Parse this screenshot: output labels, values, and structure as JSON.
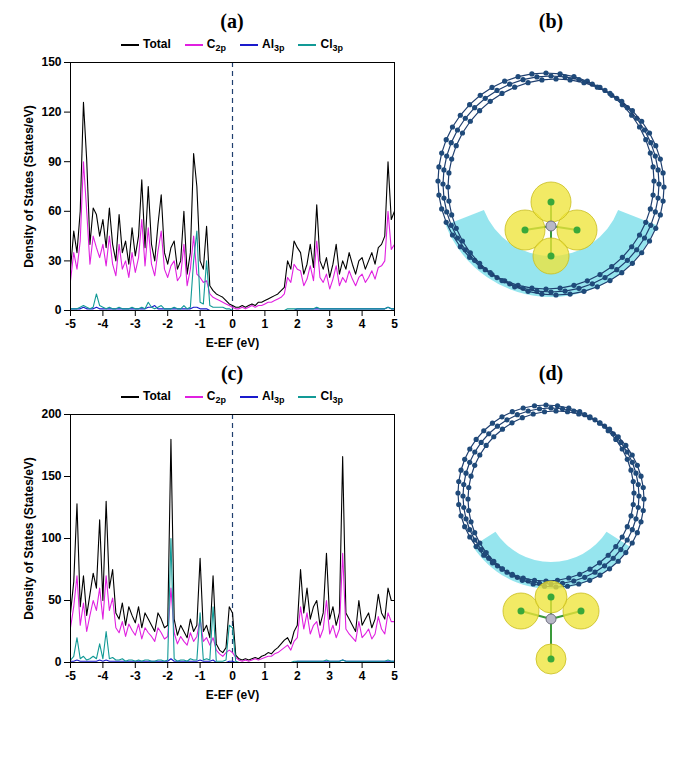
{
  "chart_data": [
    {
      "type": "line",
      "title": "(a)",
      "x_label": "E-EF (eV)",
      "y_label": "Density of States (States/eV)",
      "x": [
        -5,
        -4.9,
        -4.8,
        -4.7,
        -4.6,
        -4.5,
        -4.4,
        -4.3,
        -4.2,
        -4.1,
        -4,
        -3.9,
        -3.8,
        -3.7,
        -3.6,
        -3.5,
        -3.4,
        -3.3,
        -3.2,
        -3.1,
        -3,
        -2.9,
        -2.8,
        -2.7,
        -2.6,
        -2.5,
        -2.4,
        -2.3,
        -2.2,
        -2.1,
        -2,
        -1.9,
        -1.8,
        -1.7,
        -1.6,
        -1.5,
        -1.4,
        -1.3,
        -1.2,
        -1.1,
        -1,
        -0.9,
        -0.8,
        -0.7,
        -0.6,
        -0.5,
        -0.4,
        -0.3,
        -0.2,
        -0.1,
        0,
        0.1,
        0.2,
        0.3,
        0.4,
        0.5,
        0.6,
        0.7,
        0.8,
        0.9,
        1,
        1.1,
        1.2,
        1.3,
        1.4,
        1.5,
        1.6,
        1.7,
        1.8,
        1.9,
        2,
        2.1,
        2.2,
        2.3,
        2.4,
        2.5,
        2.6,
        2.7,
        2.8,
        2.9,
        3,
        3.1,
        3.2,
        3.3,
        3.4,
        3.5,
        3.6,
        3.7,
        3.8,
        3.9,
        4,
        4.1,
        4.2,
        4.3,
        4.4,
        4.5,
        4.6,
        4.7,
        4.8,
        4.9,
        5
      ],
      "series": [
        {
          "name": "Total",
          "color": "#000000",
          "values": [
            25,
            48,
            35,
            60,
            126,
            91,
            40,
            62,
            58,
            45,
            55,
            38,
            62,
            40,
            30,
            58,
            35,
            42,
            28,
            50,
            33,
            45,
            79,
            38,
            75,
            40,
            30,
            52,
            70,
            35,
            28,
            38,
            42,
            25,
            30,
            60,
            22,
            35,
            95,
            75,
            30,
            25,
            51,
            15,
            12,
            10,
            9,
            8,
            6,
            4,
            3,
            2,
            2,
            3,
            2,
            3,
            4,
            3,
            5,
            5,
            6,
            7,
            8,
            9,
            10,
            12,
            14,
            30,
            25,
            42,
            38,
            35,
            22,
            28,
            40,
            26,
            64,
            30,
            25,
            32,
            20,
            28,
            40,
            22,
            30,
            25,
            35,
            28,
            22,
            30,
            32,
            25,
            30,
            35,
            28,
            38,
            40,
            45,
            90,
            55,
            60
          ]
        },
        {
          "name": "C2p",
          "color": "#e020e0",
          "values": [
            18,
            35,
            25,
            42,
            90,
            60,
            28,
            45,
            38,
            32,
            40,
            27,
            45,
            28,
            21,
            40,
            25,
            30,
            20,
            35,
            23,
            32,
            55,
            27,
            50,
            28,
            21,
            36,
            48,
            25,
            20,
            27,
            30,
            18,
            21,
            40,
            15,
            25,
            45,
            22,
            20,
            17,
            18,
            10,
            8,
            7,
            6,
            5,
            4,
            3,
            2,
            1,
            1,
            2,
            1,
            2,
            3,
            2,
            3,
            3,
            4,
            5,
            5,
            6,
            7,
            8,
            10,
            20,
            17,
            28,
            25,
            24,
            15,
            19,
            27,
            18,
            42,
            20,
            17,
            22,
            13,
            19,
            27,
            15,
            20,
            17,
            24,
            19,
            15,
            20,
            22,
            17,
            20,
            24,
            19,
            26,
            27,
            30,
            60,
            37,
            40
          ]
        },
        {
          "name": "Al3p",
          "color": "#1a1acc",
          "values": [
            1,
            1,
            1,
            1,
            2,
            1,
            1,
            1,
            2,
            1,
            1,
            1,
            1,
            1,
            1,
            1,
            1,
            1,
            1,
            1,
            1,
            1,
            1,
            1,
            2,
            2,
            3,
            1,
            1,
            1,
            1,
            1,
            1,
            1,
            1,
            1,
            1,
            1,
            2,
            2,
            1,
            1,
            1,
            0,
            0,
            0,
            0,
            0,
            0,
            0,
            0,
            0,
            0,
            0,
            0,
            0,
            0,
            0,
            0,
            0,
            0,
            0,
            0,
            0,
            0,
            0,
            0,
            0,
            0,
            0,
            1,
            1,
            1,
            1,
            1,
            1,
            1,
            1,
            1,
            1,
            1,
            1,
            1,
            1,
            1,
            1,
            1,
            1,
            1,
            1,
            1,
            1,
            1,
            1,
            1,
            1,
            1,
            1,
            2,
            1,
            1
          ]
        },
        {
          "name": "Cl3p",
          "color": "#129a96",
          "values": [
            1,
            1,
            1,
            2,
            3,
            2,
            1,
            2,
            10,
            3,
            2,
            1,
            2,
            1,
            1,
            2,
            1,
            1,
            1,
            2,
            1,
            1,
            2,
            1,
            5,
            2,
            1,
            2,
            3,
            1,
            1,
            1,
            2,
            1,
            1,
            3,
            1,
            2,
            30,
            48,
            5,
            4,
            30,
            3,
            2,
            2,
            2,
            2,
            1,
            1,
            0,
            0,
            0,
            0,
            0,
            0,
            0,
            0,
            0,
            0,
            0,
            0,
            0,
            0,
            0,
            0,
            0,
            1,
            1,
            1,
            1,
            1,
            1,
            1,
            1,
            1,
            2,
            1,
            1,
            1,
            1,
            1,
            1,
            1,
            1,
            1,
            1,
            1,
            1,
            1,
            1,
            1,
            1,
            1,
            1,
            1,
            1,
            1,
            2,
            1,
            1
          ]
        }
      ],
      "xlim": [
        -5,
        5
      ],
      "xticks": [
        -5,
        -4,
        -3,
        -2,
        -1,
        0,
        1,
        2,
        3,
        4,
        5
      ],
      "ylim": [
        0,
        150
      ],
      "yticks": [
        0,
        30,
        60,
        90,
        120,
        150
      ],
      "legend": "top",
      "reference_lines": [
        {
          "x": 0,
          "line_style": "dashed",
          "color": "#1f3f6f"
        }
      ]
    },
    {
      "type": "line",
      "title": "(c)",
      "x_label": "E-EF (eV)",
      "y_label": "Density of States (States/eV)",
      "x": [
        -5,
        -4.9,
        -4.8,
        -4.7,
        -4.6,
        -4.5,
        -4.4,
        -4.3,
        -4.2,
        -4.1,
        -4,
        -3.9,
        -3.8,
        -3.7,
        -3.6,
        -3.5,
        -3.4,
        -3.3,
        -3.2,
        -3.1,
        -3,
        -2.9,
        -2.8,
        -2.7,
        -2.6,
        -2.5,
        -2.4,
        -2.3,
        -2.2,
        -2.1,
        -2,
        -1.9,
        -1.8,
        -1.7,
        -1.6,
        -1.5,
        -1.4,
        -1.3,
        -1.2,
        -1.1,
        -1,
        -0.9,
        -0.8,
        -0.7,
        -0.6,
        -0.5,
        -0.4,
        -0.3,
        -0.2,
        -0.1,
        0,
        0.1,
        0.2,
        0.3,
        0.4,
        0.5,
        0.6,
        0.7,
        0.8,
        0.9,
        1,
        1.1,
        1.2,
        1.3,
        1.4,
        1.5,
        1.6,
        1.7,
        1.8,
        1.9,
        2,
        2.1,
        2.2,
        2.3,
        2.4,
        2.5,
        2.6,
        2.7,
        2.8,
        2.9,
        3,
        3.1,
        3.2,
        3.3,
        3.4,
        3.5,
        3.6,
        3.7,
        3.8,
        3.9,
        4,
        4.1,
        4.2,
        4.3,
        4.4,
        4.5,
        4.6,
        4.7,
        4.8,
        4.9,
        5
      ],
      "series": [
        {
          "name": "Total",
          "color": "#000000",
          "values": [
            40,
            65,
            128,
            45,
            70,
            38,
            55,
            72,
            60,
            115,
            50,
            130,
            60,
            75,
            40,
            35,
            48,
            30,
            45,
            38,
            32,
            45,
            28,
            40,
            35,
            30,
            25,
            40,
            35,
            28,
            30,
            180,
            35,
            22,
            30,
            25,
            20,
            35,
            25,
            30,
            84,
            25,
            30,
            20,
            70,
            15,
            10,
            8,
            12,
            45,
            40,
            6,
            3,
            2,
            3,
            2,
            3,
            4,
            3,
            5,
            6,
            8,
            7,
            10,
            12,
            15,
            18,
            20,
            15,
            25,
            30,
            75,
            40,
            60,
            35,
            45,
            50,
            30,
            40,
            88,
            35,
            45,
            30,
            40,
            166,
            40,
            35,
            30,
            25,
            50,
            30,
            35,
            40,
            28,
            35,
            55,
            40,
            35,
            60,
            50,
            50
          ]
        },
        {
          "name": "C2p",
          "color": "#e020e0",
          "values": [
            28,
            45,
            70,
            30,
            48,
            25,
            38,
            50,
            42,
            60,
            35,
            70,
            42,
            52,
            28,
            24,
            33,
            21,
            31,
            26,
            22,
            31,
            19,
            28,
            24,
            21,
            17,
            28,
            24,
            19,
            21,
            60,
            24,
            15,
            21,
            17,
            14,
            24,
            17,
            21,
            35,
            17,
            20,
            14,
            20,
            10,
            7,
            5,
            8,
            10,
            8,
            4,
            2,
            1,
            2,
            1,
            2,
            3,
            2,
            3,
            4,
            5,
            5,
            7,
            8,
            10,
            12,
            14,
            10,
            17,
            20,
            45,
            27,
            40,
            23,
            30,
            33,
            20,
            27,
            50,
            23,
            30,
            20,
            27,
            88,
            27,
            23,
            20,
            17,
            33,
            20,
            23,
            27,
            19,
            23,
            37,
            27,
            23,
            40,
            33,
            33
          ]
        },
        {
          "name": "Al3p",
          "color": "#1a1acc",
          "values": [
            1,
            1,
            2,
            1,
            1,
            1,
            1,
            1,
            1,
            2,
            1,
            2,
            1,
            1,
            1,
            1,
            1,
            1,
            1,
            1,
            1,
            1,
            1,
            1,
            1,
            1,
            1,
            1,
            1,
            1,
            1,
            3,
            1,
            1,
            1,
            1,
            1,
            1,
            1,
            1,
            2,
            1,
            1,
            1,
            2,
            0,
            0,
            0,
            0,
            1,
            1,
            0,
            0,
            0,
            0,
            0,
            0,
            0,
            0,
            0,
            0,
            0,
            0,
            0,
            0,
            0,
            0,
            0,
            0,
            0,
            1,
            1,
            1,
            1,
            1,
            1,
            1,
            1,
            1,
            1,
            1,
            1,
            1,
            1,
            2,
            1,
            1,
            1,
            1,
            1,
            1,
            1,
            1,
            1,
            1,
            1,
            1,
            1,
            1,
            1,
            1
          ]
        },
        {
          "name": "Cl3p",
          "color": "#129a96",
          "values": [
            2,
            5,
            20,
            3,
            5,
            2,
            3,
            5,
            3,
            15,
            3,
            25,
            3,
            4,
            2,
            2,
            3,
            1,
            2,
            2,
            1,
            2,
            1,
            2,
            2,
            1,
            1,
            2,
            2,
            1,
            2,
            100,
            3,
            1,
            2,
            2,
            1,
            3,
            2,
            2,
            40,
            2,
            3,
            2,
            45,
            1,
            1,
            1,
            2,
            30,
            28,
            1,
            0,
            0,
            0,
            0,
            0,
            0,
            0,
            0,
            0,
            0,
            0,
            0,
            0,
            0,
            0,
            0,
            0,
            1,
            1,
            1,
            1,
            1,
            1,
            1,
            1,
            1,
            1,
            2,
            1,
            1,
            1,
            1,
            2,
            1,
            1,
            1,
            1,
            1,
            1,
            1,
            1,
            1,
            1,
            1,
            1,
            1,
            2,
            1,
            1
          ]
        }
      ],
      "xlim": [
        -5,
        5
      ],
      "xticks": [
        -5,
        -4,
        -3,
        -2,
        -1,
        0,
        1,
        2,
        3,
        4,
        5
      ],
      "ylim": [
        0,
        200
      ],
      "yticks": [
        0,
        50,
        100,
        150,
        200
      ],
      "legend": "top",
      "reference_lines": [
        {
          "x": 0,
          "line_style": "dashed",
          "color": "#1f3f6f"
        }
      ]
    }
  ],
  "images": [
    {
      "label": "(b)"
    },
    {
      "label": "(d)"
    }
  ]
}
